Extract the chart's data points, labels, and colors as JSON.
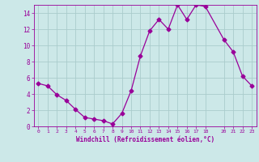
{
  "x": [
    0,
    1,
    2,
    3,
    4,
    5,
    6,
    7,
    8,
    9,
    10,
    11,
    12,
    13,
    14,
    15,
    16,
    17,
    18,
    20,
    21,
    22,
    23
  ],
  "y": [
    5.3,
    5.0,
    3.9,
    3.2,
    2.1,
    1.1,
    0.9,
    0.7,
    0.3,
    1.6,
    4.4,
    8.7,
    11.8,
    13.2,
    12.0,
    15.0,
    13.2,
    15.0,
    14.8,
    10.7,
    9.2,
    6.2,
    5.0
  ],
  "line_color": "#990099",
  "marker": "D",
  "marker_size": 2.5,
  "bg_color": "#cce8e8",
  "grid_color": "#aacccc",
  "xlabel": "Windchill (Refroidissement éolien,°C)",
  "xlabel_color": "#990099",
  "tick_color": "#990099",
  "ylim": [
    0,
    15
  ],
  "xlim": [
    -0.5,
    23.5
  ],
  "yticks": [
    0,
    2,
    4,
    6,
    8,
    10,
    12,
    14
  ],
  "xticks": [
    0,
    1,
    2,
    3,
    4,
    5,
    6,
    7,
    8,
    9,
    10,
    11,
    12,
    13,
    14,
    15,
    16,
    17,
    18,
    20,
    21,
    22,
    23
  ]
}
